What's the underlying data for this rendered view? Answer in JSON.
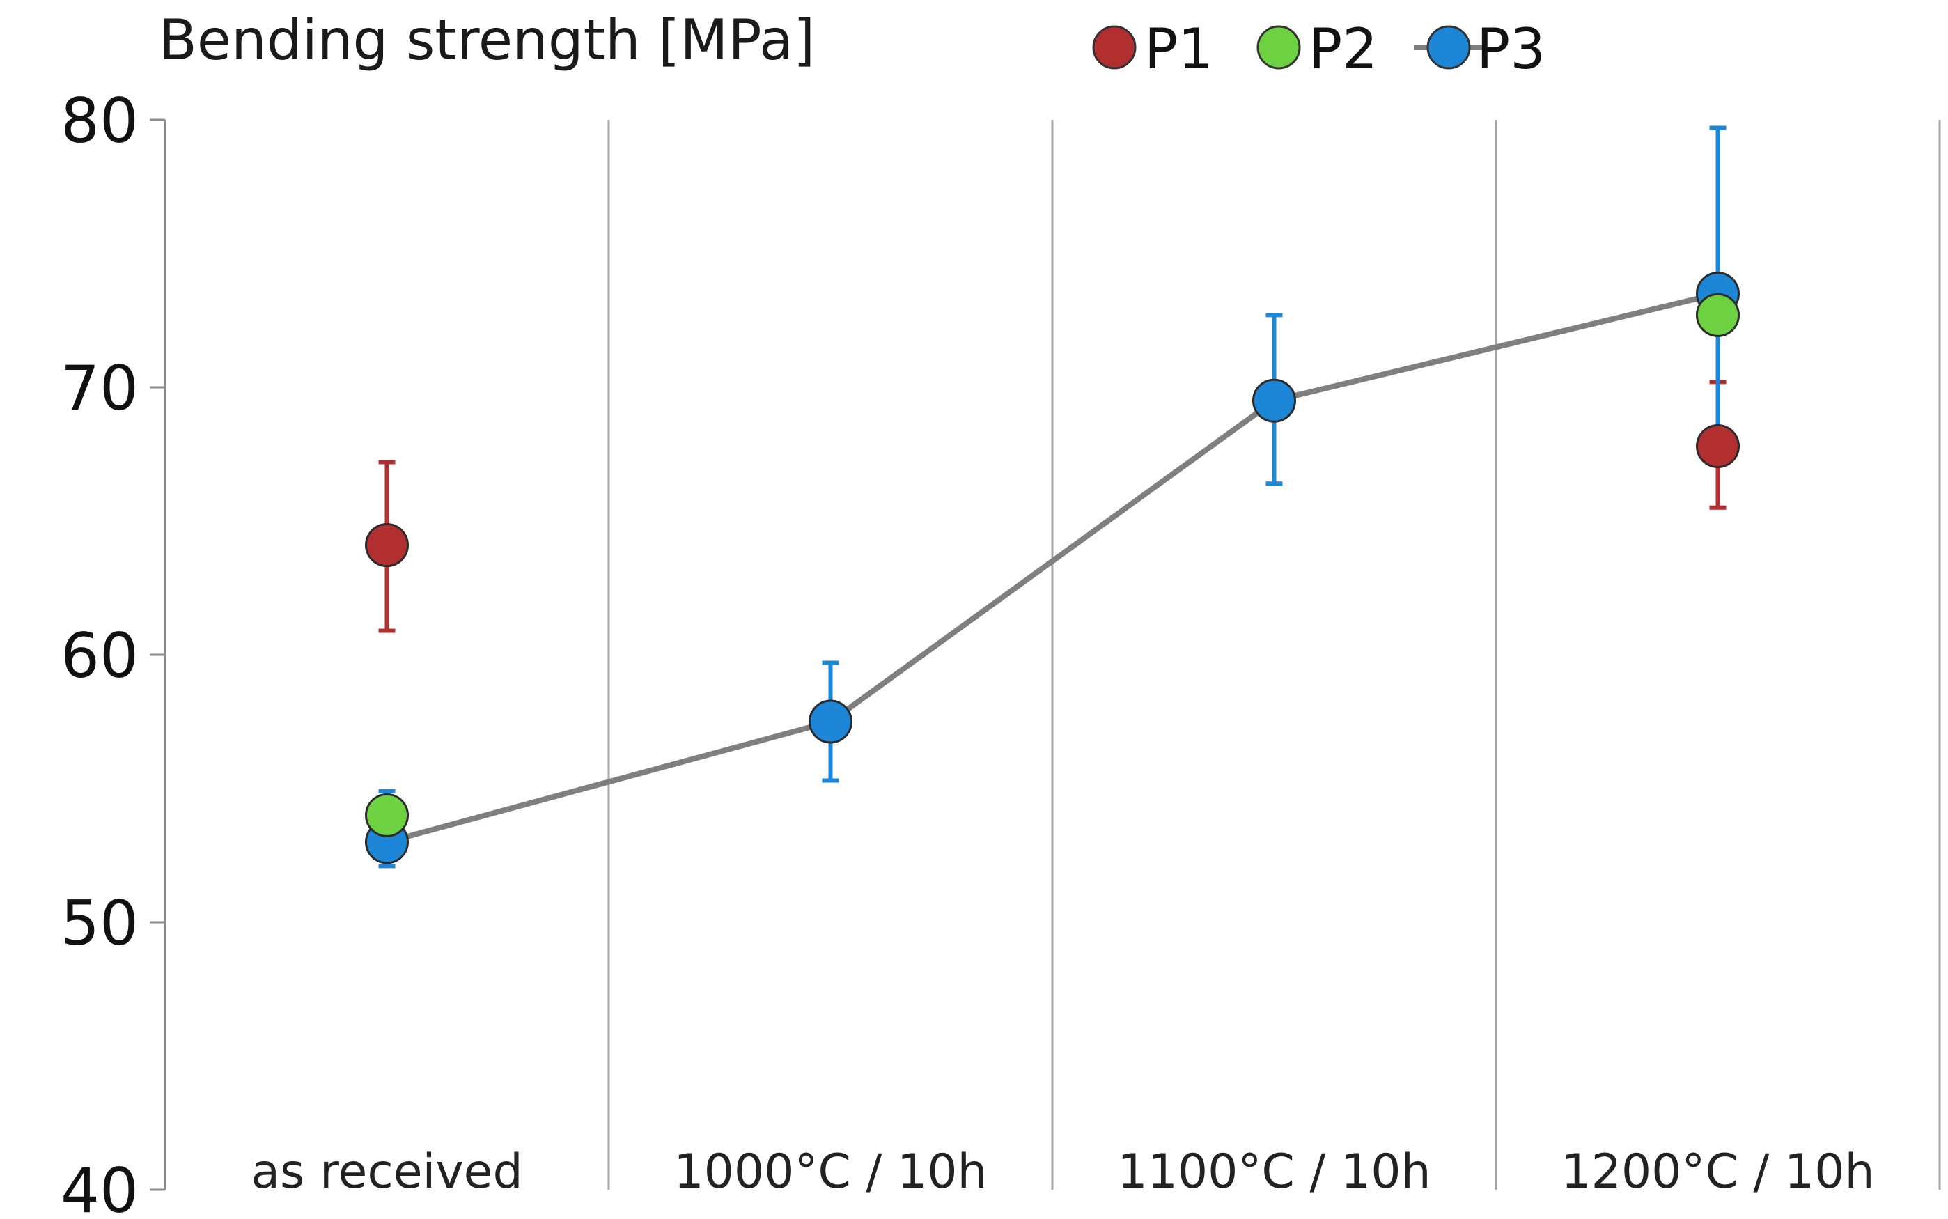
{
  "colors": {
    "P1": "#b12f2f",
    "P2": "#6dd142",
    "P3": "#1e86d6",
    "line": "#7f7f7f",
    "axis": "#8c8c8c",
    "separator": "#a6a6a6"
  },
  "chart_data": {
    "type": "scatter",
    "title": "Bending strength  [MPa]",
    "xlabel": "",
    "ylabel": "Bending strength  [MPa]",
    "ylim": [
      40,
      80
    ],
    "yticks": [
      40,
      50,
      60,
      70,
      80
    ],
    "categories": [
      "as received",
      "1000°C / 10h",
      "1100°C / 10h",
      "1200°C / 10h"
    ],
    "legend": {
      "position": "top-right",
      "entries": [
        "P1",
        "P2",
        "P3"
      ]
    },
    "series": [
      {
        "name": "P1",
        "color": "#b12f2f",
        "connected": false,
        "points": [
          {
            "category": "as received",
            "value": 64.1,
            "err_low": 60.9,
            "err_high": 67.2
          },
          {
            "category": "1200°C / 10h",
            "value": 67.8,
            "err_low": 65.5,
            "err_high": 70.2
          }
        ]
      },
      {
        "name": "P2",
        "color": "#6dd142",
        "connected": false,
        "points": [
          {
            "category": "as received",
            "value": 54.0
          },
          {
            "category": "1200°C / 10h",
            "value": 72.7
          }
        ]
      },
      {
        "name": "P3",
        "color": "#1e86d6",
        "connected": true,
        "points": [
          {
            "category": "as received",
            "value": 53.0,
            "err_low": 52.1,
            "err_high": 54.9
          },
          {
            "category": "1000°C / 10h",
            "value": 57.5,
            "err_low": 55.3,
            "err_high": 59.7
          },
          {
            "category": "1100°C / 10h",
            "value": 69.5,
            "err_low": 66.4,
            "err_high": 72.7
          },
          {
            "category": "1200°C / 10h",
            "value": 73.5,
            "err_low": 67.8,
            "err_high": 79.7
          }
        ]
      }
    ]
  }
}
